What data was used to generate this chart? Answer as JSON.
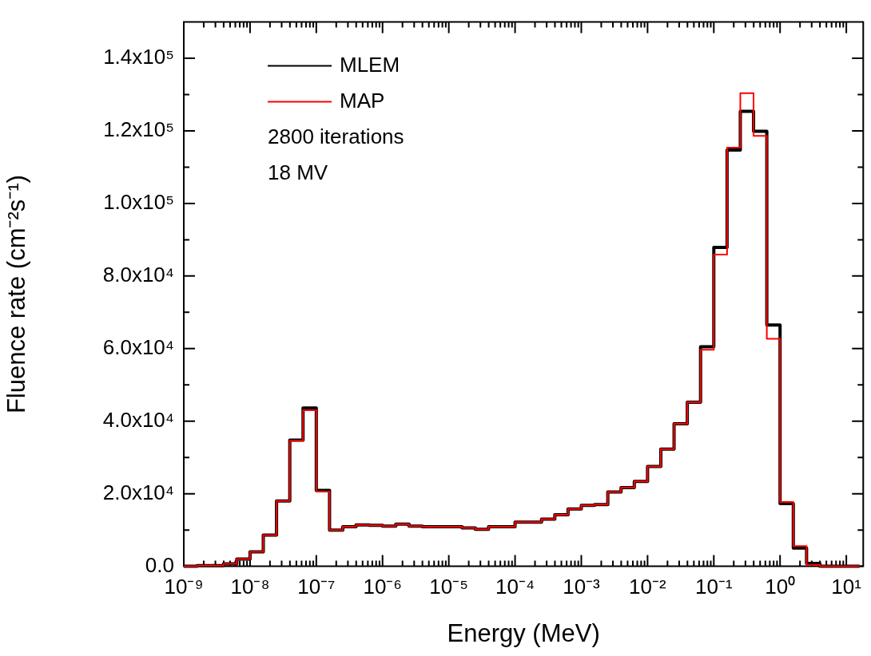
{
  "chart_data": {
    "type": "step",
    "xlabel": "Energy (MeV)",
    "ylabel": "Fluence rate (cm⁻²s⁻¹)",
    "log": "x",
    "grid": false,
    "legend": "top left",
    "line_style": "solid",
    "marker": "none",
    "annotations": [
      "2800 iterations",
      "18 MV"
    ],
    "xlim": [
      1e-09,
      18
    ],
    "ylim": [
      0,
      150000
    ],
    "x": [
      1e-09,
      1.585e-09,
      2.512e-09,
      3.981e-09,
      6.31e-09,
      1e-08,
      1.585e-08,
      2.512e-08,
      3.981e-08,
      6.31e-08,
      1e-07,
      1.585e-07,
      2.512e-07,
      3.981e-07,
      6.31e-07,
      1e-06,
      1.585e-06,
      2.512e-06,
      3.981e-06,
      6.31e-06,
      1e-05,
      1.585e-05,
      2.512e-05,
      3.981e-05,
      6.31e-05,
      0.0001,
      0.0001585,
      0.0002512,
      0.0003981,
      0.000631,
      0.001,
      0.001585,
      0.002512,
      0.003981,
      0.00631,
      0.01,
      0.01585,
      0.02512,
      0.03981,
      0.0631,
      0.1,
      0.1585,
      0.2512,
      0.3981,
      0.631,
      1,
      1.585,
      2.512,
      3.981,
      6.31,
      10,
      15.85
    ],
    "series": [
      {
        "name": "MLEM",
        "color": "#000000",
        "values": [
          0,
          0,
          200,
          200,
          700,
          2000,
          4000,
          8600,
          18000,
          34800,
          43600,
          20900,
          10000,
          10900,
          11400,
          11300,
          11100,
          11600,
          11100,
          10900,
          10900,
          10900,
          10600,
          10200,
          10900,
          10900,
          12200,
          12200,
          13000,
          14200,
          15800,
          16800,
          17000,
          20500,
          21700,
          23400,
          27500,
          32300,
          39300,
          45200,
          60500,
          87900,
          114700,
          125400,
          119900,
          66500,
          17300,
          5000,
          800,
          0,
          0,
          0
        ]
      },
      {
        "name": "MAP",
        "color": "#ff0000",
        "values": [
          0,
          0,
          200,
          200,
          700,
          2000,
          4000,
          8600,
          18000,
          34600,
          43000,
          20600,
          10000,
          10900,
          11400,
          11300,
          11100,
          11600,
          11100,
          10900,
          10900,
          10900,
          10600,
          10200,
          10900,
          10900,
          12200,
          12200,
          13000,
          14200,
          15800,
          16800,
          17000,
          20500,
          21700,
          23400,
          27500,
          32300,
          39300,
          45200,
          59700,
          85900,
          115400,
          130400,
          118600,
          62700,
          17700,
          5600,
          400,
          0,
          0,
          0
        ]
      }
    ],
    "xticks": [
      {
        "value": 1e-09,
        "label": "10⁻⁹"
      },
      {
        "value": 2e-09,
        "label": null
      },
      {
        "value": 3e-09,
        "label": null
      },
      {
        "value": 4e-09,
        "label": null
      },
      {
        "value": 5e-09,
        "label": null
      },
      {
        "value": 6e-09,
        "label": null
      },
      {
        "value": 7e-09,
        "label": null
      },
      {
        "value": 8e-09,
        "label": null
      },
      {
        "value": 9e-09,
        "label": null
      },
      {
        "value": 1e-08,
        "label": "10⁻⁸"
      },
      {
        "value": 2e-08,
        "label": null
      },
      {
        "value": 3e-08,
        "label": null
      },
      {
        "value": 4e-08,
        "label": null
      },
      {
        "value": 5e-08,
        "label": null
      },
      {
        "value": 6e-08,
        "label": null
      },
      {
        "value": 7e-08,
        "label": null
      },
      {
        "value": 8e-08,
        "label": null
      },
      {
        "value": 9e-08,
        "label": null
      },
      {
        "value": 1e-07,
        "label": "10⁻⁷"
      },
      {
        "value": 2e-07,
        "label": null
      },
      {
        "value": 3e-07,
        "label": null
      },
      {
        "value": 4e-07,
        "label": null
      },
      {
        "value": 5e-07,
        "label": null
      },
      {
        "value": 6e-07,
        "label": null
      },
      {
        "value": 7e-07,
        "label": null
      },
      {
        "value": 8e-07,
        "label": null
      },
      {
        "value": 9e-07,
        "label": null
      },
      {
        "value": 1e-06,
        "label": "10⁻⁶"
      },
      {
        "value": 2e-06,
        "label": null
      },
      {
        "value": 3e-06,
        "label": null
      },
      {
        "value": 4e-06,
        "label": null
      },
      {
        "value": 5e-06,
        "label": null
      },
      {
        "value": 6e-06,
        "label": null
      },
      {
        "value": 7e-06,
        "label": null
      },
      {
        "value": 8e-06,
        "label": null
      },
      {
        "value": 9e-06,
        "label": null
      },
      {
        "value": 1e-05,
        "label": "10⁻⁵"
      },
      {
        "value": 2e-05,
        "label": null
      },
      {
        "value": 3e-05,
        "label": null
      },
      {
        "value": 4e-05,
        "label": null
      },
      {
        "value": 5e-05,
        "label": null
      },
      {
        "value": 6e-05,
        "label": null
      },
      {
        "value": 7e-05,
        "label": null
      },
      {
        "value": 8e-05,
        "label": null
      },
      {
        "value": 9e-05,
        "label": null
      },
      {
        "value": 0.0001,
        "label": "10⁻⁴"
      },
      {
        "value": 0.0002,
        "label": null
      },
      {
        "value": 0.0003,
        "label": null
      },
      {
        "value": 0.0004,
        "label": null
      },
      {
        "value": 0.0005,
        "label": null
      },
      {
        "value": 0.0006,
        "label": null
      },
      {
        "value": 0.0007,
        "label": null
      },
      {
        "value": 0.0008,
        "label": null
      },
      {
        "value": 0.0009,
        "label": null
      },
      {
        "value": 0.001,
        "label": "10⁻³"
      },
      {
        "value": 0.002,
        "label": null
      },
      {
        "value": 0.003,
        "label": null
      },
      {
        "value": 0.004,
        "label": null
      },
      {
        "value": 0.005,
        "label": null
      },
      {
        "value": 0.006,
        "label": null
      },
      {
        "value": 0.007,
        "label": null
      },
      {
        "value": 0.008,
        "label": null
      },
      {
        "value": 0.009,
        "label": null
      },
      {
        "value": 0.01,
        "label": "10⁻²"
      },
      {
        "value": 0.02,
        "label": null
      },
      {
        "value": 0.03,
        "label": null
      },
      {
        "value": 0.04,
        "label": null
      },
      {
        "value": 0.05,
        "label": null
      },
      {
        "value": 0.06,
        "label": null
      },
      {
        "value": 0.07,
        "label": null
      },
      {
        "value": 0.08,
        "label": null
      },
      {
        "value": 0.09,
        "label": null
      },
      {
        "value": 0.1,
        "label": "10⁻¹"
      },
      {
        "value": 0.2,
        "label": null
      },
      {
        "value": 0.3,
        "label": null
      },
      {
        "value": 0.4,
        "label": null
      },
      {
        "value": 0.5,
        "label": null
      },
      {
        "value": 0.6,
        "label": null
      },
      {
        "value": 0.7,
        "label": null
      },
      {
        "value": 0.8,
        "label": null
      },
      {
        "value": 0.9,
        "label": null
      },
      {
        "value": 1,
        "label": "10⁰"
      },
      {
        "value": 2,
        "label": null
      },
      {
        "value": 3,
        "label": null
      },
      {
        "value": 4,
        "label": null
      },
      {
        "value": 5,
        "label": null
      },
      {
        "value": 6,
        "label": null
      },
      {
        "value": 7,
        "label": null
      },
      {
        "value": 8,
        "label": null
      },
      {
        "value": 9,
        "label": null
      },
      {
        "value": 10,
        "label": "10¹"
      }
    ],
    "yticks": [
      {
        "value": 0,
        "label": "0.0"
      },
      {
        "value": 10000,
        "label": null
      },
      {
        "value": 20000,
        "label": "2.0x10⁴"
      },
      {
        "value": 30000,
        "label": null
      },
      {
        "value": 40000,
        "label": "4.0x10⁴"
      },
      {
        "value": 50000,
        "label": null
      },
      {
        "value": 60000,
        "label": "6.0x10⁴"
      },
      {
        "value": 70000,
        "label": null
      },
      {
        "value": 80000,
        "label": "8.0x10⁴"
      },
      {
        "value": 90000,
        "label": null
      },
      {
        "value": 100000,
        "label": "1.0x10⁵"
      },
      {
        "value": 110000,
        "label": null
      },
      {
        "value": 120000,
        "label": "1.2x10⁵"
      },
      {
        "value": 130000,
        "label": null
      },
      {
        "value": 140000,
        "label": "1.4x10⁵"
      }
    ]
  }
}
